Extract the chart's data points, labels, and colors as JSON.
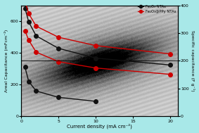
{
  "background_color": "#a8e8e8",
  "xlabel": "Current density (mA cm⁻²)",
  "ylabel_left": "Areal Capacitance (mFcm⁻²)",
  "ylabel_right": "Specific capacitance (F g⁻¹)",
  "xlim": [
    0,
    21
  ],
  "ylim_left": [
    0,
    700
  ],
  "ylim_right": [
    0,
    400
  ],
  "black_x_lower": [
    0.5,
    1,
    2,
    5,
    10
  ],
  "black_y_lower": [
    310,
    220,
    160,
    120,
    95
  ],
  "red_x_lower": [
    0.5,
    1,
    2,
    5,
    10,
    20
  ],
  "red_y_lower": [
    540,
    480,
    405,
    345,
    305,
    265
  ],
  "black_x_upper": [
    0.5,
    1,
    2,
    5,
    10,
    20
  ],
  "black_y_upper_right": [
    390,
    340,
    290,
    245,
    210,
    185
  ],
  "red_x_upper": [
    0.5,
    1,
    2,
    5,
    10,
    20
  ],
  "red_y_upper_right": [
    415,
    370,
    325,
    285,
    255,
    225
  ],
  "hline_y_left": 350,
  "black_color": "#111111",
  "red_color": "#cc0000",
  "legend_fe2o3": "Fe₂O₃ NTAs",
  "legend_fe2o3ppy": "Fe₂O₃@PPy NTAs",
  "marker_size": 4,
  "linewidth": 1.0,
  "xticks": [
    0,
    5,
    10,
    15,
    20
  ],
  "yticks_left": [
    0,
    200,
    400,
    600
  ],
  "yticks_right": [
    0,
    100,
    200,
    300,
    400
  ]
}
